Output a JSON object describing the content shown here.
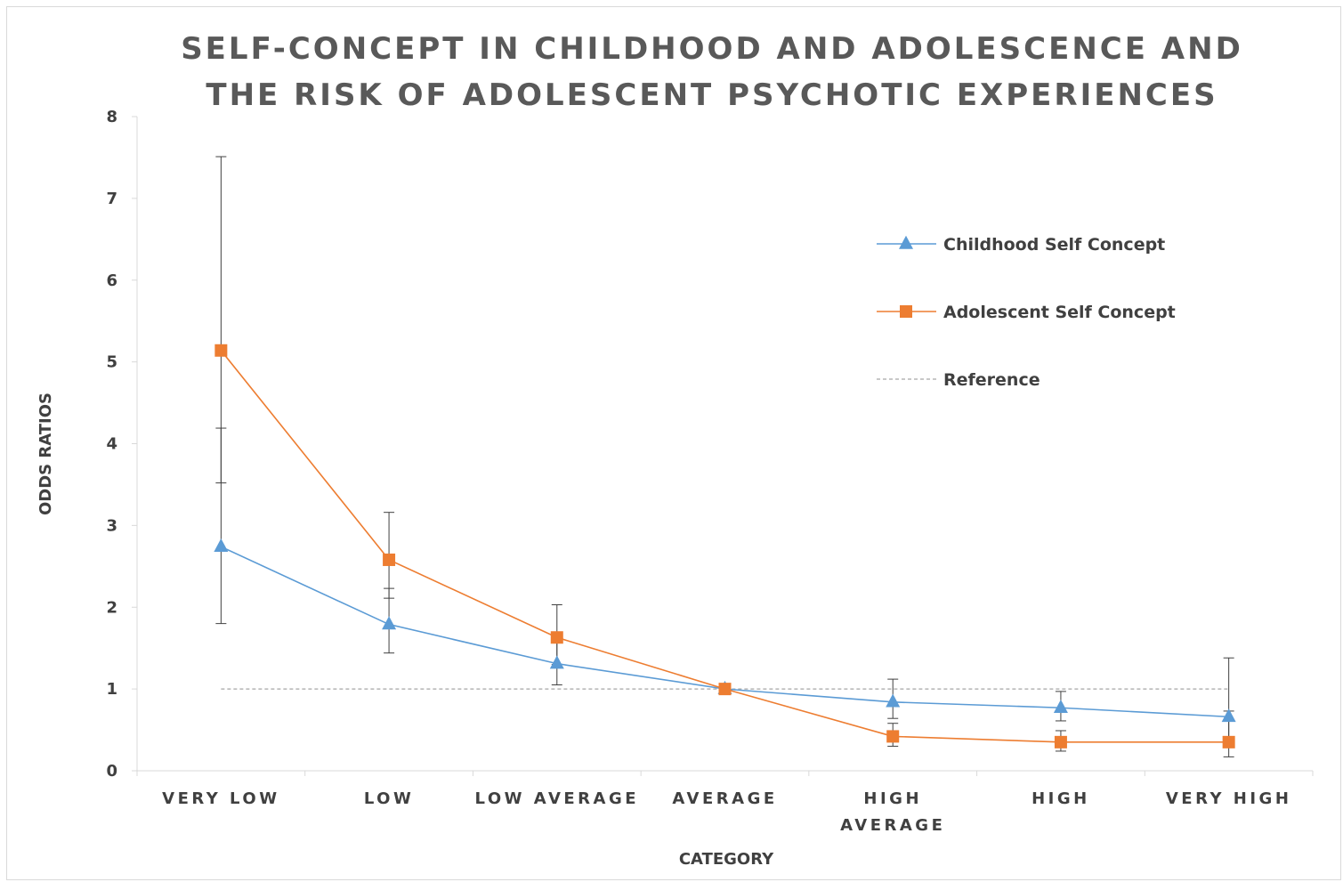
{
  "chart_data": {
    "type": "line",
    "title_lines": [
      "SELF-CONCEPT  IN CHILDHOOD AND ADOLESCENCE AND",
      "THE RISK OF ADOLESCENT PSYCHOTIC EXPERIENCES"
    ],
    "xlabel": "CATEGORY",
    "ylabel": "ODDS RATIOS",
    "categories": [
      "VERY LOW",
      "LOW",
      "LOW AVERAGE",
      "AVERAGE",
      "HIGH AVERAGE",
      "HIGH",
      "VERY HIGH"
    ],
    "category_label_lines": [
      [
        "VERY LOW"
      ],
      [
        "LOW"
      ],
      [
        "LOW AVERAGE"
      ],
      [
        "AVERAGE"
      ],
      [
        "HIGH",
        "AVERAGE"
      ],
      [
        "HIGH"
      ],
      [
        "VERY HIGH"
      ]
    ],
    "ylim": [
      0,
      8
    ],
    "yticks": [
      0,
      1,
      2,
      3,
      4,
      5,
      6,
      7,
      8
    ],
    "grid": false,
    "legend_position": "right",
    "series": [
      {
        "name": "Childhood Self Concept",
        "color": "#5b9bd5",
        "marker": "triangle",
        "values": [
          2.74,
          1.79,
          1.31,
          1.0,
          0.84,
          0.77,
          0.66
        ],
        "ci_lower": [
          1.8,
          1.44,
          1.05,
          null,
          0.64,
          0.61,
          0.34
        ],
        "ci_upper": [
          4.19,
          2.23,
          1.62,
          null,
          1.12,
          0.97,
          1.38
        ]
      },
      {
        "name": "Adolescent Self Concept",
        "color": "#ed7d31",
        "marker": "square",
        "values": [
          5.14,
          2.58,
          1.63,
          1.0,
          0.42,
          0.35,
          0.35
        ],
        "ci_lower": [
          3.52,
          2.11,
          1.3,
          null,
          0.3,
          0.24,
          0.17
        ],
        "ci_upper": [
          7.51,
          3.16,
          2.03,
          null,
          0.58,
          0.49,
          0.73
        ]
      }
    ],
    "reference": {
      "name": "Reference",
      "value": 1,
      "color": "#a6a6a6",
      "style": "dashed"
    }
  }
}
